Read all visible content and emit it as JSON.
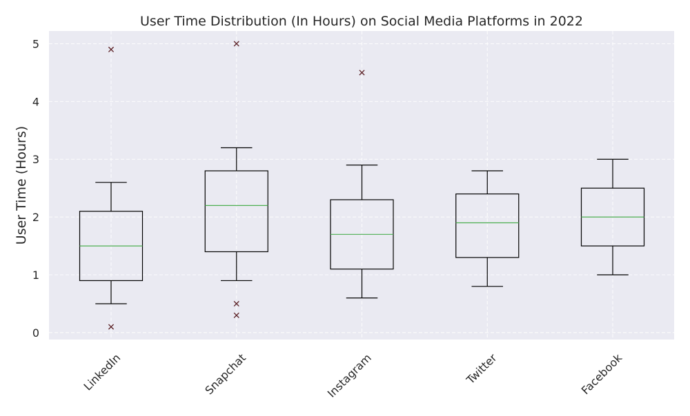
{
  "chart_data": {
    "type": "box",
    "title": "User Time Distribution (In Hours) on Social Media Platforms in 2022",
    "xlabel": "",
    "ylabel": "User Time (Hours)",
    "ylim": [
      -0.12,
      5.22
    ],
    "yticks": [
      0,
      1,
      2,
      3,
      4,
      5
    ],
    "grid": true,
    "colors": {
      "plot_background": "#eaeaf2",
      "grid": "#ffffff",
      "box": "#000000",
      "median": "#4caf50",
      "outlier": "#5a1f24"
    },
    "categories": [
      "LinkedIn",
      "Snapchat",
      "Instagram",
      "Twitter",
      "Facebook"
    ],
    "boxes": [
      {
        "category": "LinkedIn",
        "whisker_low": 0.5,
        "q1": 0.9,
        "median": 1.5,
        "q3": 2.1,
        "whisker_high": 2.6,
        "outliers": [
          4.9,
          0.1
        ]
      },
      {
        "category": "Snapchat",
        "whisker_low": 0.9,
        "q1": 1.4,
        "median": 2.2,
        "q3": 2.8,
        "whisker_high": 3.2,
        "outliers": [
          5.0,
          0.5,
          0.3
        ]
      },
      {
        "category": "Instagram",
        "whisker_low": 0.6,
        "q1": 1.1,
        "median": 1.7,
        "q3": 2.3,
        "whisker_high": 2.9,
        "outliers": [
          4.5
        ]
      },
      {
        "category": "Twitter",
        "whisker_low": 0.8,
        "q1": 1.3,
        "median": 1.9,
        "q3": 2.4,
        "whisker_high": 2.8,
        "outliers": []
      },
      {
        "category": "Facebook",
        "whisker_low": 1.0,
        "q1": 1.5,
        "median": 2.0,
        "q3": 2.5,
        "whisker_high": 3.0,
        "outliers": []
      }
    ]
  }
}
